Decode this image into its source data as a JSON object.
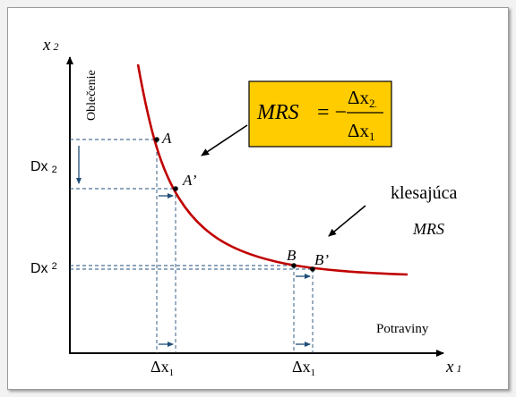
{
  "axes": {
    "y_label": "x",
    "y_sub": "2",
    "x_label": "x",
    "x_sub": "1",
    "y_name": "Oblečenie",
    "x_name": "Potraviny"
  },
  "points": {
    "A": "A",
    "A_prime": "A’",
    "B": "B",
    "B_prime": "B’"
  },
  "deltas": {
    "dx2_upper": "Dx",
    "dx2_upper_sub": "2",
    "dx2_lower": "Dx",
    "dx2_lower_sub": "2",
    "dx1_left": "Δx",
    "dx1_left_sub": "1",
    "dx1_right": "Δx",
    "dx1_right_sub": "1"
  },
  "formula": {
    "lhs": "MRS",
    "eq": "= −",
    "numer": "Δx",
    "numer_sub": "2",
    "numer_tail": ".",
    "denom": "Δx",
    "denom_sub": "1",
    "box_color": "#ffcc00"
  },
  "annotation": {
    "line1": "klesajúca",
    "line2": "MRS"
  },
  "colors": {
    "curve": "#c00000",
    "guide": "#1f4e79",
    "axis": "#000000"
  }
}
